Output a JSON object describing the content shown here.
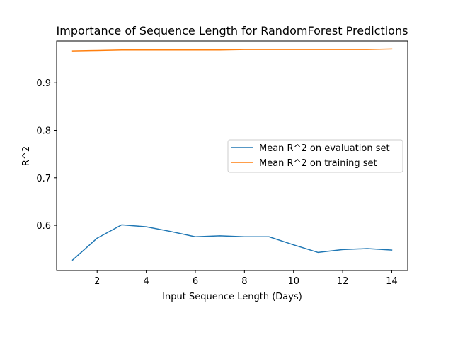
{
  "chart_data": {
    "type": "line",
    "title": "Importance of Sequence Length for RandomForest Predictions",
    "xlabel": "Input Sequence Length (Days)",
    "ylabel": "R^2",
    "xlim": [
      0.35,
      14.65
    ],
    "ylim": [
      0.505,
      0.988
    ],
    "xticks": [
      2,
      4,
      6,
      8,
      10,
      12,
      14
    ],
    "yticks": [
      0.6,
      0.7,
      0.8,
      0.9
    ],
    "ytick_labels": [
      "0.6",
      "0.7",
      "0.8",
      "0.9"
    ],
    "grid": false,
    "legend_position": "center-right",
    "x": [
      1,
      2,
      3,
      4,
      5,
      6,
      7,
      8,
      9,
      10,
      11,
      12,
      13,
      14
    ],
    "series": [
      {
        "name": "Mean R^2 on evaluation set",
        "color": "#1f77b4",
        "values": [
          0.527,
          0.573,
          0.601,
          0.597,
          0.587,
          0.576,
          0.578,
          0.576,
          0.576,
          0.559,
          0.543,
          0.549,
          0.551,
          0.548
        ]
      },
      {
        "name": "Mean R^2 on training set",
        "color": "#ff7f0e",
        "values": [
          0.967,
          0.968,
          0.969,
          0.969,
          0.969,
          0.969,
          0.969,
          0.97,
          0.97,
          0.97,
          0.97,
          0.97,
          0.97,
          0.971
        ]
      }
    ]
  }
}
